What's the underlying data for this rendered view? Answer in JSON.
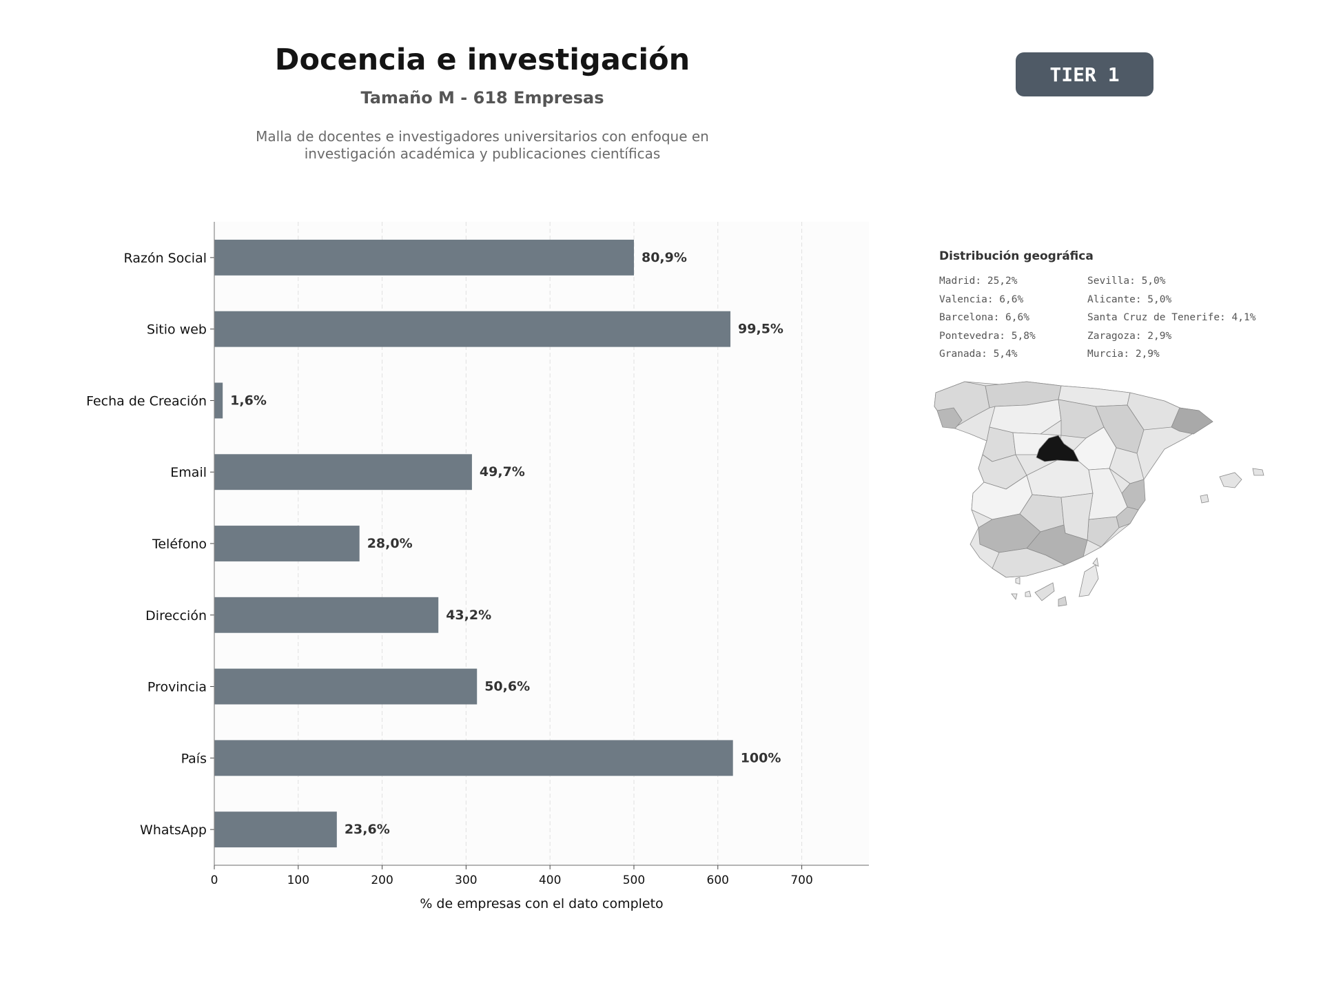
{
  "header": {
    "title": "Docencia e investigación",
    "subtitle": "Tamaño M - 618 Empresas",
    "description_line1": "Malla de docentes e investigadores universitarios con enfoque en",
    "description_line2": "investigación académica y publicaciones científicas",
    "tier": "TIER 1"
  },
  "colors": {
    "bar": "#6e7a84",
    "badge": "#4f5a66",
    "map_highlight": "#151515"
  },
  "chart_data": {
    "type": "bar",
    "orientation": "horizontal",
    "categories": [
      "Razón Social",
      "Sitio web",
      "Fecha de Creación",
      "Email",
      "Teléfono",
      "Dirección",
      "Provincia",
      "País",
      "WhatsApp"
    ],
    "values": [
      500,
      615,
      10,
      307,
      173,
      267,
      313,
      618,
      146
    ],
    "value_labels": [
      "80,9%",
      "99,5%",
      "1,6%",
      "49,7%",
      "28,0%",
      "43,2%",
      "50,6%",
      "100%",
      "23,6%"
    ],
    "xlabel": "% de empresas con el dato completo",
    "ylabel": "",
    "xlim": [
      0,
      780
    ],
    "xticks": [
      0,
      100,
      200,
      300,
      400,
      500,
      600,
      700
    ],
    "grid": "vertical dashed"
  },
  "geo": {
    "title": "Distribución geográfica",
    "items": [
      "Madrid: 25,2%",
      "Sevilla: 5,0%",
      "Valencia: 6,6%",
      "Alicante: 5,0%",
      "Barcelona: 6,6%",
      "Santa Cruz de Tenerife: 4,1%",
      "Pontevedra: 5,8%",
      "Zaragoza: 2,9%",
      "Granada: 5,4%",
      "Murcia: 2,9%"
    ]
  }
}
